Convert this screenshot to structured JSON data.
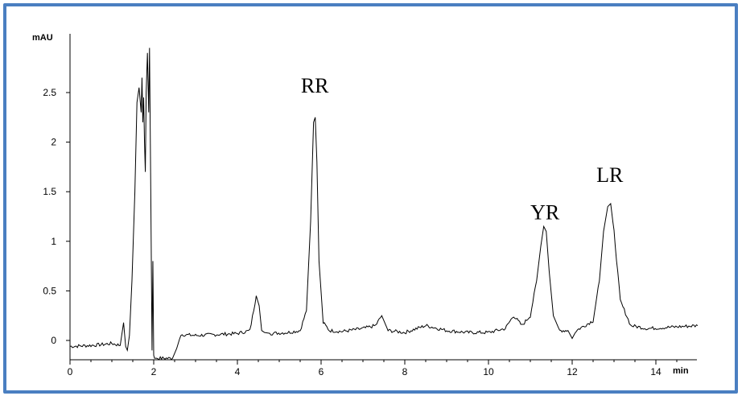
{
  "chart_data": {
    "type": "line",
    "title": "",
    "xlabel": "min",
    "ylabel": "mAU",
    "xlim": [
      0,
      15
    ],
    "ylim": [
      -0.08,
      3.05
    ],
    "xticks": [
      0,
      2,
      4,
      6,
      8,
      10,
      12,
      14
    ],
    "yticks": [
      0,
      0.5,
      1,
      1.5,
      2,
      2.5
    ],
    "xtick_labels": [
      "0",
      "2",
      "4",
      "6",
      "8",
      "10",
      "12",
      "14"
    ],
    "ytick_labels": [
      "0",
      "0.5",
      "1",
      "1.5",
      "2",
      "2.5"
    ],
    "grid": false,
    "line_color": "#000000",
    "frame_color": "#4a7fc1",
    "annotations": [
      {
        "text": "RR",
        "x": 5.85,
        "y": 2.5
      },
      {
        "text": "YR",
        "x": 11.35,
        "y": 1.22
      },
      {
        "text": "LR",
        "x": 12.9,
        "y": 1.6
      }
    ],
    "series": [
      {
        "x": [
          0,
          0.5,
          0.8,
          1.0,
          1.2,
          1.28,
          1.33,
          1.37,
          1.42,
          1.48,
          1.55,
          1.6,
          1.65,
          1.7,
          1.72,
          1.74,
          1.76,
          1.78,
          1.8,
          1.82,
          1.85,
          1.88,
          1.9,
          1.93,
          1.96,
          1.98,
          2.0,
          2.02,
          2.1,
          2.3,
          2.45,
          2.55,
          2.65,
          3.0,
          3.5,
          4.0,
          4.3,
          4.45,
          4.52,
          4.58,
          4.65,
          4.8,
          5.2,
          5.5,
          5.65,
          5.75,
          5.82,
          5.86,
          5.9,
          5.95,
          6.05,
          6.2,
          6.5,
          7.0,
          7.3,
          7.45,
          7.6,
          8.0,
          8.5,
          9.0,
          9.5,
          10.0,
          10.4,
          10.6,
          10.8,
          11.0,
          11.15,
          11.25,
          11.32,
          11.38,
          11.45,
          11.55,
          11.7,
          11.9,
          12.0,
          12.1,
          12.3,
          12.5,
          12.65,
          12.75,
          12.85,
          12.92,
          13.0,
          13.15,
          13.4,
          13.8,
          14.2,
          14.6,
          15.0
        ],
        "y": [
          -0.06,
          -0.05,
          -0.04,
          -0.03,
          -0.05,
          0.18,
          -0.06,
          -0.1,
          0.05,
          0.6,
          1.5,
          2.4,
          2.55,
          2.3,
          2.65,
          2.2,
          2.45,
          2.0,
          1.7,
          2.5,
          2.9,
          2.3,
          2.95,
          1.5,
          -0.1,
          0.8,
          -0.15,
          -0.18,
          -0.18,
          -0.18,
          -0.18,
          -0.08,
          0.06,
          0.05,
          0.06,
          0.07,
          0.1,
          0.45,
          0.35,
          0.1,
          0.08,
          0.07,
          0.08,
          0.1,
          0.3,
          1.2,
          2.2,
          2.25,
          1.8,
          0.8,
          0.18,
          0.1,
          0.09,
          0.12,
          0.15,
          0.25,
          0.1,
          0.08,
          0.15,
          0.1,
          0.08,
          0.08,
          0.12,
          0.25,
          0.15,
          0.25,
          0.6,
          0.95,
          1.15,
          1.1,
          0.7,
          0.25,
          0.1,
          0.1,
          0.02,
          0.1,
          0.15,
          0.2,
          0.6,
          1.1,
          1.35,
          1.38,
          1.1,
          0.4,
          0.15,
          0.12,
          0.13,
          0.14,
          0.15
        ]
      }
    ]
  }
}
